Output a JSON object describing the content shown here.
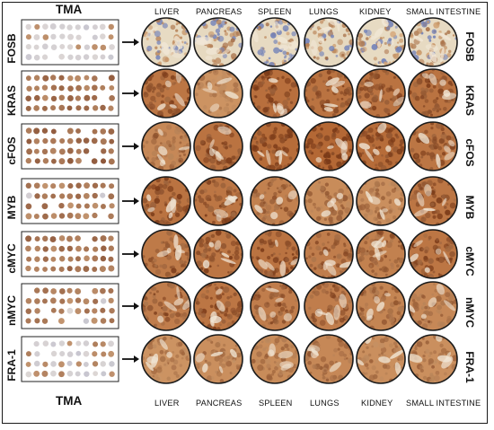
{
  "figure": {
    "tma_label": "TMA",
    "organs": [
      "LIVER",
      "PANCREAS",
      "SPLEEN",
      "LUNGS",
      "KIDNEY",
      "SMALL INTESTINE"
    ],
    "markers": [
      "FOSB",
      "KRAS",
      "cFOS",
      "MYB",
      "cMYC",
      "nMYC",
      "FRA-1"
    ],
    "stain_colors": {
      "brown_dark": "#7a3a18",
      "brown_mid": "#b0612e",
      "brown_light": "#d8a878",
      "hematoxylin_blue": "#6f7fb8",
      "background_pale": "#eadfc8"
    },
    "staining_intensity": [
      [
        0.15,
        0.25,
        0.2,
        0.25,
        0.15,
        0.2
      ],
      [
        0.7,
        0.3,
        0.8,
        0.75,
        0.75,
        0.75
      ],
      [
        0.45,
        0.75,
        0.85,
        0.9,
        0.85,
        0.7
      ],
      [
        0.75,
        0.7,
        0.55,
        0.4,
        0.35,
        0.7
      ],
      [
        0.65,
        0.7,
        0.75,
        0.6,
        0.55,
        0.7
      ],
      [
        0.6,
        0.7,
        0.6,
        0.6,
        0.5,
        0.45
      ],
      [
        0.3,
        0.35,
        0.4,
        0.45,
        0.35,
        0.35
      ]
    ]
  }
}
